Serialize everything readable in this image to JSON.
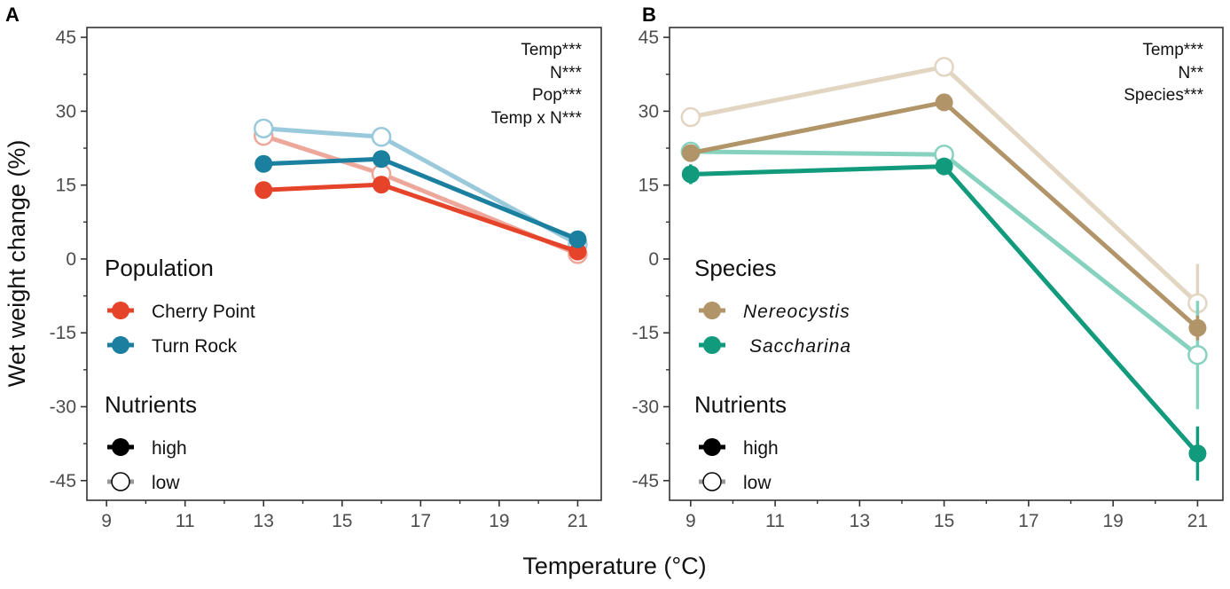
{
  "figure": {
    "x_title": "Temperature (°C)",
    "y_title": "Wet weight change (%)"
  },
  "chart_data": [
    {
      "type": "line",
      "panel_label": "A",
      "x_ticks": [
        9,
        11,
        13,
        15,
        17,
        19,
        21
      ],
      "y_ticks": [
        45,
        30,
        15,
        0,
        -15,
        -30,
        -45
      ],
      "xlim": [
        8.5,
        21.6
      ],
      "ylim": [
        -49,
        47
      ],
      "stats": [
        "Temp***",
        "N***",
        "Pop***",
        "Temp x N***"
      ],
      "group_legend_title": "Population",
      "group_legend": [
        {
          "label": "Cherry Point",
          "color": "#e5432a"
        },
        {
          "label": "Turn Rock",
          "color": "#1b7fa0"
        }
      ],
      "nutrient_legend_title": "Nutrients",
      "nutrient_legend": [
        {
          "label": "high",
          "fill": "filled"
        },
        {
          "label": "low",
          "fill": "open"
        }
      ],
      "series": [
        {
          "name": "Cherry Point - low",
          "color": "#eda89b",
          "open": true,
          "x": [
            13,
            16,
            21
          ],
          "y": [
            25,
            17.3,
            1
          ],
          "err": [
            0,
            0,
            0
          ]
        },
        {
          "name": "Turn Rock - low",
          "color": "#9ac9db",
          "open": true,
          "x": [
            13,
            16,
            21
          ],
          "y": [
            26.5,
            24.8,
            3
          ],
          "err": [
            0,
            0,
            0
          ]
        },
        {
          "name": "Cherry Point - high",
          "color": "#e5432a",
          "open": false,
          "x": [
            13,
            16,
            21
          ],
          "y": [
            14,
            15.1,
            1.5
          ],
          "err": [
            0,
            0,
            0
          ]
        },
        {
          "name": "Turn Rock - high",
          "color": "#1b7fa0",
          "open": false,
          "x": [
            13,
            16,
            21
          ],
          "y": [
            19.3,
            20.3,
            4
          ],
          "err": [
            0,
            0,
            0
          ]
        }
      ]
    },
    {
      "type": "line",
      "panel_label": "B",
      "x_ticks": [
        9,
        11,
        13,
        15,
        17,
        19,
        21
      ],
      "y_ticks": [
        45,
        30,
        15,
        0,
        -15,
        -30,
        -45
      ],
      "xlim": [
        8.5,
        21.6
      ],
      "ylim": [
        -49,
        47
      ],
      "stats": [
        "Temp***",
        "N**",
        "Species***"
      ],
      "group_legend_title": "Species",
      "group_legend": [
        {
          "label": "Nereocystis",
          "color": "#b19468"
        },
        {
          "label": "Saccharina",
          "color": "#119a7c"
        }
      ],
      "nutrient_legend_title": "Nutrients",
      "nutrient_legend": [
        {
          "label": "high",
          "fill": "filled"
        },
        {
          "label": "low",
          "fill": "open"
        }
      ],
      "series": [
        {
          "name": "Nereocystis - low",
          "color": "#e2d6c3",
          "open": true,
          "x": [
            9,
            15,
            21
          ],
          "y": [
            28.8,
            39,
            -9
          ],
          "err": [
            0,
            0,
            8
          ]
        },
        {
          "name": "Saccharina - low",
          "color": "#86d2bf",
          "open": true,
          "x": [
            9,
            15,
            21
          ],
          "y": [
            21.8,
            21.2,
            -19.5
          ],
          "err": [
            0,
            0,
            11
          ]
        },
        {
          "name": "Nereocystis - high",
          "color": "#b19468",
          "open": false,
          "x": [
            9,
            15,
            21
          ],
          "y": [
            21.5,
            31.8,
            -14
          ],
          "err": [
            0,
            0,
            2.5
          ]
        },
        {
          "name": "Saccharina - high",
          "color": "#119a7c",
          "open": false,
          "x": [
            9,
            15,
            21
          ],
          "y": [
            17.2,
            18.8,
            -39.5
          ],
          "err": [
            2,
            0,
            5.5
          ]
        }
      ]
    }
  ]
}
